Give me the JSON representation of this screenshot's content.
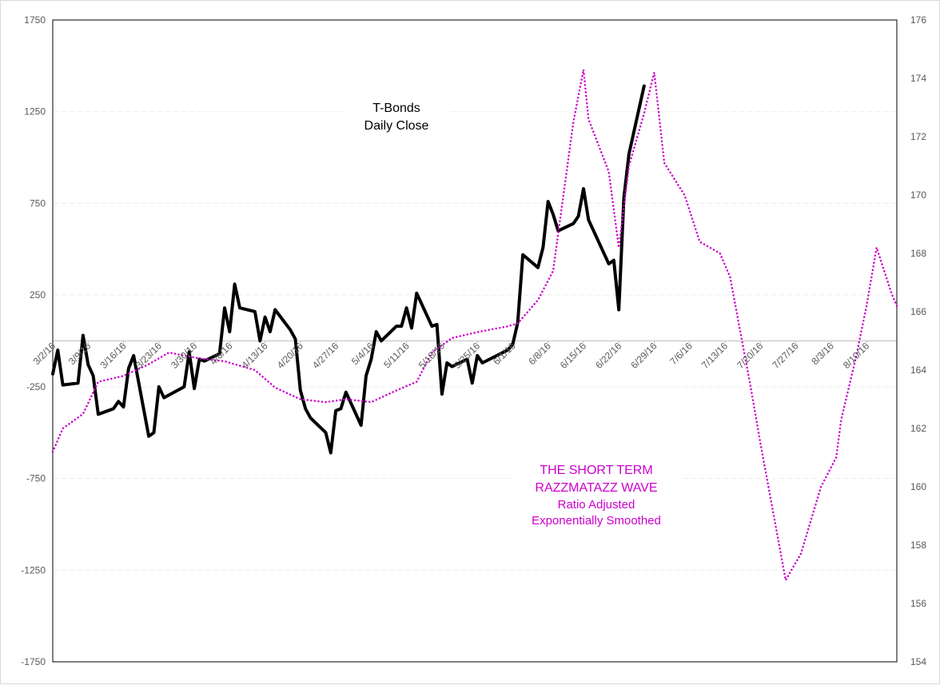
{
  "chart_data": {
    "type": "line",
    "title": "",
    "annotations": {
      "tbonds": [
        "T-Bonds",
        "Daily Close"
      ],
      "wave": [
        "THE SHORT TERM",
        "RAZZMATAZZ WAVE",
        "Ratio Adjusted",
        "Exponentially Smoothed"
      ]
    },
    "left_axis": {
      "range": [
        -1750,
        1750
      ],
      "ticks": [
        "1750",
        "1250",
        "750",
        "250",
        "-250",
        "-750",
        "-1250",
        "-1750"
      ],
      "tick_values": [
        1750,
        1250,
        750,
        250,
        -250,
        -750,
        -1250,
        -1750
      ]
    },
    "right_axis": {
      "range": [
        154,
        176
      ],
      "ticks": [
        "176",
        "174",
        "172",
        "170",
        "168",
        "166",
        "164",
        "162",
        "160",
        "158",
        "156",
        "154"
      ],
      "tick_values": [
        176,
        174,
        172,
        170,
        168,
        166,
        164,
        162,
        160,
        158,
        156,
        154
      ]
    },
    "x_axis": {
      "dates": [
        "3/2/16",
        "3/9/16",
        "3/16/16",
        "3/23/16",
        "3/30/16",
        "4/6/16",
        "4/13/16",
        "4/20/16",
        "4/27/16",
        "5/4/16",
        "5/11/16",
        "5/18/16",
        "5/25/16",
        "6/1/16",
        "6/8/16",
        "6/15/16",
        "6/22/16",
        "6/29/16",
        "7/6/16",
        "7/13/16",
        "7/20/16",
        "7/27/16",
        "8/3/16",
        "8/10/16"
      ],
      "start": "3/2/16",
      "end": "8/16/16"
    },
    "grid": "horizontal dashed",
    "series": [
      {
        "key": "tbonds",
        "axis": "left",
        "color": "#000000",
        "style": "solid",
        "points": [
          [
            "3/2/16",
            -180
          ],
          [
            "3/3/16",
            -50
          ],
          [
            "3/4/16",
            -240
          ],
          [
            "3/7/16",
            -230
          ],
          [
            "3/8/16",
            30
          ],
          [
            "3/9/16",
            -130
          ],
          [
            "3/10/16",
            -190
          ],
          [
            "3/11/16",
            -400
          ],
          [
            "3/14/16",
            -370
          ],
          [
            "3/15/16",
            -330
          ],
          [
            "3/16/16",
            -360
          ],
          [
            "3/17/16",
            -150
          ],
          [
            "3/18/16",
            -80
          ],
          [
            "3/21/16",
            -520
          ],
          [
            "3/22/16",
            -500
          ],
          [
            "3/23/16",
            -250
          ],
          [
            "3/24/16",
            -310
          ],
          [
            "3/28/16",
            -250
          ],
          [
            "3/29/16",
            -60
          ],
          [
            "3/30/16",
            -260
          ],
          [
            "3/31/16",
            -100
          ],
          [
            "4/1/16",
            -110
          ],
          [
            "4/4/16",
            -70
          ],
          [
            "4/5/16",
            180
          ],
          [
            "4/6/16",
            50
          ],
          [
            "4/7/16",
            310
          ],
          [
            "4/8/16",
            180
          ],
          [
            "4/11/16",
            160
          ],
          [
            "4/12/16",
            0
          ],
          [
            "4/13/16",
            130
          ],
          [
            "4/14/16",
            50
          ],
          [
            "4/15/16",
            170
          ],
          [
            "4/18/16",
            60
          ],
          [
            "4/19/16",
            10
          ],
          [
            "4/20/16",
            -270
          ],
          [
            "4/21/16",
            -370
          ],
          [
            "4/22/16",
            -420
          ],
          [
            "4/25/16",
            -500
          ],
          [
            "4/26/16",
            -610
          ],
          [
            "4/27/16",
            -380
          ],
          [
            "4/28/16",
            -370
          ],
          [
            "4/29/16",
            -280
          ],
          [
            "5/2/16",
            -460
          ],
          [
            "5/3/16",
            -190
          ],
          [
            "5/4/16",
            -100
          ],
          [
            "5/5/16",
            50
          ],
          [
            "5/6/16",
            0
          ],
          [
            "5/9/16",
            80
          ],
          [
            "5/10/16",
            80
          ],
          [
            "5/11/16",
            180
          ],
          [
            "5/12/16",
            70
          ],
          [
            "5/13/16",
            260
          ],
          [
            "5/16/16",
            80
          ],
          [
            "5/17/16",
            90
          ],
          [
            "5/18/16",
            -290
          ],
          [
            "5/19/16",
            -120
          ],
          [
            "5/20/16",
            -140
          ],
          [
            "5/23/16",
            -100
          ],
          [
            "5/24/16",
            -230
          ],
          [
            "5/25/16",
            -80
          ],
          [
            "5/26/16",
            -120
          ],
          [
            "5/31/16",
            -50
          ],
          [
            "6/1/16",
            -20
          ],
          [
            "6/2/16",
            100
          ],
          [
            "6/3/16",
            470
          ],
          [
            "6/6/16",
            400
          ],
          [
            "6/7/16",
            510
          ],
          [
            "6/8/16",
            760
          ],
          [
            "6/9/16",
            690
          ],
          [
            "6/10/16",
            600
          ],
          [
            "6/13/16",
            640
          ],
          [
            "6/14/16",
            680
          ],
          [
            "6/15/16",
            830
          ],
          [
            "6/16/16",
            660
          ],
          [
            "6/20/16",
            420
          ],
          [
            "6/21/16",
            440
          ],
          [
            "6/22/16",
            170
          ],
          [
            "6/23/16",
            780
          ],
          [
            "6/24/16",
            1020
          ],
          [
            "6/27/16",
            1390
          ]
        ]
      },
      {
        "key": "wave",
        "axis": "right",
        "color": "#cc00cc",
        "style": "dotted",
        "points": [
          [
            "3/2/16",
            161.2
          ],
          [
            "3/4/16",
            162.0
          ],
          [
            "3/8/16",
            162.5
          ],
          [
            "3/11/16",
            163.6
          ],
          [
            "3/16/16",
            163.8
          ],
          [
            "3/21/16",
            164.2
          ],
          [
            "3/25/16",
            164.6
          ],
          [
            "3/31/16",
            164.4
          ],
          [
            "4/5/16",
            164.3
          ],
          [
            "4/11/16",
            164.0
          ],
          [
            "4/15/16",
            163.4
          ],
          [
            "4/20/16",
            163.0
          ],
          [
            "4/25/16",
            162.9
          ],
          [
            "4/29/16",
            163.0
          ],
          [
            "5/4/16",
            162.9
          ],
          [
            "5/9/16",
            163.3
          ],
          [
            "5/13/16",
            163.6
          ],
          [
            "5/16/16",
            164.6
          ],
          [
            "5/20/16",
            165.1
          ],
          [
            "5/25/16",
            165.3
          ],
          [
            "5/31/16",
            165.5
          ],
          [
            "6/2/16",
            165.6
          ],
          [
            "6/6/16",
            166.4
          ],
          [
            "6/9/16",
            167.4
          ],
          [
            "6/13/16",
            172.5
          ],
          [
            "6/15/16",
            174.3
          ],
          [
            "6/16/16",
            172.6
          ],
          [
            "6/20/16",
            170.8
          ],
          [
            "6/22/16",
            168.2
          ],
          [
            "6/24/16",
            171.0
          ],
          [
            "6/27/16",
            172.8
          ],
          [
            "6/29/16",
            174.2
          ],
          [
            "7/1/16",
            171.1
          ],
          [
            "7/5/16",
            170.0
          ],
          [
            "7/8/16",
            168.4
          ],
          [
            "7/12/16",
            168.0
          ],
          [
            "7/14/16",
            167.2
          ],
          [
            "7/18/16",
            163.5
          ],
          [
            "7/20/16",
            161.5
          ],
          [
            "7/25/16",
            156.8
          ],
          [
            "7/28/16",
            157.7
          ],
          [
            "8/1/16",
            160.0
          ],
          [
            "8/4/16",
            161.0
          ],
          [
            "8/5/16",
            162.3
          ],
          [
            "8/8/16",
            164.5
          ],
          [
            "8/10/16",
            166.2
          ],
          [
            "8/12/16",
            168.2
          ],
          [
            "8/15/16",
            166.6
          ],
          [
            "8/16/16",
            166.2
          ]
        ]
      }
    ]
  }
}
